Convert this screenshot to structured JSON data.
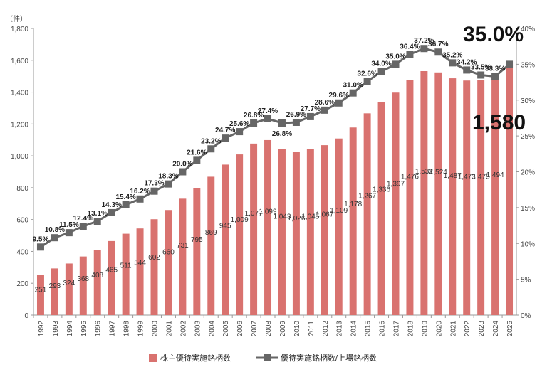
{
  "chart_data": {
    "type": "bar+line",
    "title": "",
    "y_unit_label": "（件）",
    "categories": [
      "1992",
      "1993",
      "1994",
      "1995",
      "1996",
      "1997",
      "1998",
      "1999",
      "2000",
      "2001",
      "2002",
      "2003",
      "2004",
      "2005",
      "2006",
      "2007",
      "2008",
      "2009",
      "2010",
      "2011",
      "2012",
      "2013",
      "2014",
      "2015",
      "2016",
      "2017",
      "2018",
      "2019",
      "2020",
      "2021",
      "2022",
      "2023",
      "2024",
      "2025"
    ],
    "series": [
      {
        "name": "株主優待実施銘柄数",
        "type": "bar",
        "axis": "left",
        "color": "#d9726f",
        "values": [
          251,
          293,
          324,
          368,
          408,
          465,
          511,
          544,
          602,
          660,
          731,
          795,
          869,
          945,
          1009,
          1077,
          1099,
          1043,
          1026,
          1045,
          1067,
          1109,
          1178,
          1267,
          1336,
          1397,
          1476,
          1532,
          1524,
          1487,
          1473,
          1475,
          1494,
          1580
        ],
        "labels": [
          "251",
          "293",
          "324",
          "368",
          "408",
          "465",
          "511",
          "544",
          "602",
          "660",
          "731",
          "795",
          "869",
          "945",
          "1,009",
          "1,077",
          "1,099",
          "1,043",
          "1,026",
          "1,045",
          "1,067",
          "1,109",
          "1,178",
          "1,267",
          "1,336",
          "1,397",
          "1,476",
          "1,532",
          "1,524",
          "1,487",
          "1,473",
          "1,475",
          "1,494",
          ""
        ]
      },
      {
        "name": "優待実施銘柄数/上場銘柄数",
        "type": "line",
        "axis": "right",
        "color": "#666666",
        "values": [
          9.5,
          10.8,
          11.5,
          12.4,
          13.1,
          14.3,
          15.4,
          16.2,
          17.3,
          18.3,
          20.0,
          21.6,
          23.2,
          24.7,
          25.6,
          26.8,
          27.4,
          26.8,
          26.9,
          27.7,
          28.6,
          29.6,
          31.0,
          32.6,
          34.0,
          35.0,
          36.4,
          37.2,
          36.7,
          35.2,
          34.2,
          33.5,
          33.3,
          35.0
        ],
        "labels": [
          "9.5%",
          "10.8%",
          "11.5%",
          "12.4%",
          "13.1%",
          "14.3%",
          "15.4%",
          "16.2%",
          "17.3%",
          "18.3%",
          "20.0%",
          "21.6%",
          "23.2%",
          "24.7%",
          "25.6%",
          "26.8%",
          "27.4%",
          "26.8%",
          "26.9%",
          "27.7%",
          "28.6%",
          "29.6%",
          "31.0%",
          "32.6%",
          "34.0%",
          "35.0%",
          "36.4%",
          "37.2%",
          "36.7%",
          "35.2%",
          "34.2%",
          "33.5%",
          "33.3%",
          ""
        ]
      }
    ],
    "y_left": {
      "ylim": [
        0,
        1800
      ],
      "ticks": [
        "0",
        "200",
        "400",
        "600",
        "800",
        "1,000",
        "1,200",
        "1,400",
        "1,600",
        "1,800"
      ]
    },
    "y_right": {
      "ylim": [
        0,
        40
      ],
      "ticks": [
        "0%",
        "5%",
        "10%",
        "15%",
        "20%",
        "25%",
        "30%",
        "35%",
        "40%"
      ]
    },
    "annotations": {
      "latest_ratio": "35.0%",
      "latest_count": "1,580"
    },
    "legend_placement": "bottom",
    "grid": false
  }
}
